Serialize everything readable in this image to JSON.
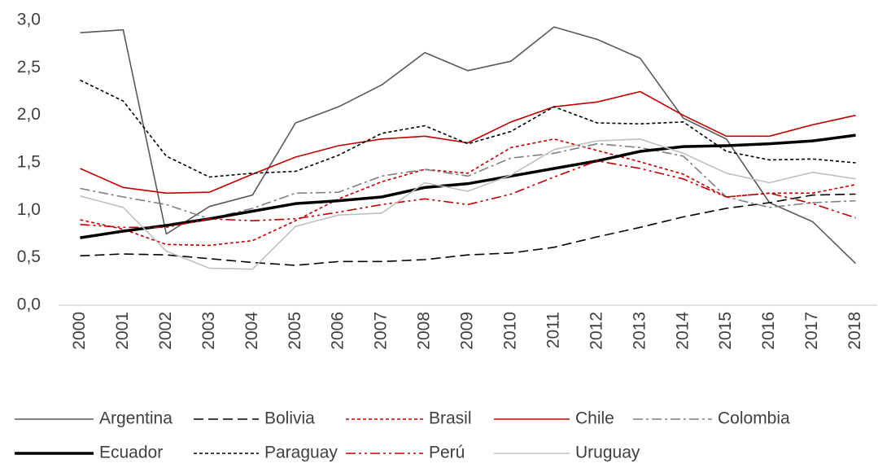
{
  "chart_data": {
    "type": "line",
    "categories": [
      "2000",
      "2001",
      "2002",
      "2003",
      "2004",
      "2005",
      "2006",
      "2007",
      "2008",
      "2009",
      "2010",
      "2011",
      "2012",
      "2013",
      "2014",
      "2015",
      "2016",
      "2017",
      "2018"
    ],
    "ylim": [
      0,
      3
    ],
    "yticks": [
      {
        "value": 0,
        "label": "0,0"
      },
      {
        "value": 0.5,
        "label": "0,5"
      },
      {
        "value": 1,
        "label": "1,0"
      },
      {
        "value": 1.5,
        "label": "1,5"
      },
      {
        "value": 2,
        "label": "2,0"
      },
      {
        "value": 2.5,
        "label": "2,5"
      },
      {
        "value": 3,
        "label": "3,0"
      }
    ],
    "grid": false,
    "legend": "bottom",
    "series": [
      {
        "name": "Argentina",
        "color": "#595959",
        "values": [
          2.87,
          2.9,
          0.75,
          1.04,
          1.16,
          1.92,
          2.09,
          2.32,
          2.66,
          2.47,
          2.57,
          2.93,
          2.8,
          2.6,
          1.97,
          1.75,
          1.08,
          0.88,
          0.44
        ]
      },
      {
        "name": "Bolivia",
        "color": "#000000",
        "values": [
          0.52,
          0.54,
          0.53,
          0.49,
          0.45,
          0.42,
          0.46,
          0.46,
          0.48,
          0.53,
          0.55,
          0.61,
          0.72,
          0.82,
          0.93,
          1.02,
          1.08,
          1.16,
          1.17
        ]
      },
      {
        "name": "Brasil",
        "color": "#c00000",
        "values": [
          0.9,
          0.8,
          0.64,
          0.63,
          0.68,
          0.89,
          1.12,
          1.3,
          1.43,
          1.39,
          1.66,
          1.75,
          1.63,
          1.51,
          1.38,
          1.14,
          1.18,
          1.18,
          1.27
        ]
      },
      {
        "name": "Chile",
        "color": "#c00000",
        "values": [
          1.44,
          1.24,
          1.18,
          1.19,
          1.38,
          1.56,
          1.68,
          1.75,
          1.78,
          1.71,
          1.93,
          2.09,
          2.14,
          2.25,
          2.0,
          1.78,
          1.78,
          1.9,
          2.0
        ]
      },
      {
        "name": "Colombia",
        "color": "#7f7f7f",
        "values": [
          1.23,
          1.14,
          1.06,
          0.91,
          1.02,
          1.18,
          1.19,
          1.36,
          1.43,
          1.36,
          1.55,
          1.6,
          1.7,
          1.66,
          1.57,
          1.14,
          1.03,
          1.08,
          1.1
        ]
      },
      {
        "name": "Ecuador",
        "color": "#000000",
        "values": [
          0.71,
          0.78,
          0.84,
          0.91,
          0.99,
          1.07,
          1.1,
          1.14,
          1.24,
          1.28,
          1.36,
          1.44,
          1.52,
          1.62,
          1.67,
          1.68,
          1.7,
          1.73,
          1.79
        ]
      },
      {
        "name": "Paraguay",
        "color": "#000000",
        "values": [
          2.37,
          2.15,
          1.57,
          1.35,
          1.39,
          1.41,
          1.58,
          1.81,
          1.89,
          1.7,
          1.83,
          2.09,
          1.92,
          1.91,
          1.93,
          1.62,
          1.53,
          1.54,
          1.5
        ]
      },
      {
        "name": "Perú",
        "color": "#c00000",
        "values": [
          0.85,
          0.82,
          0.82,
          0.91,
          0.89,
          0.91,
          0.98,
          1.06,
          1.12,
          1.06,
          1.17,
          1.35,
          1.52,
          1.44,
          1.33,
          1.14,
          1.18,
          1.07,
          0.92
        ]
      },
      {
        "name": "Uruguay",
        "color": "#bfbfbf",
        "values": [
          1.15,
          1.03,
          0.57,
          0.39,
          0.38,
          0.83,
          0.95,
          0.97,
          1.29,
          1.2,
          1.37,
          1.64,
          1.73,
          1.75,
          1.6,
          1.39,
          1.29,
          1.4,
          1.33
        ]
      }
    ]
  }
}
